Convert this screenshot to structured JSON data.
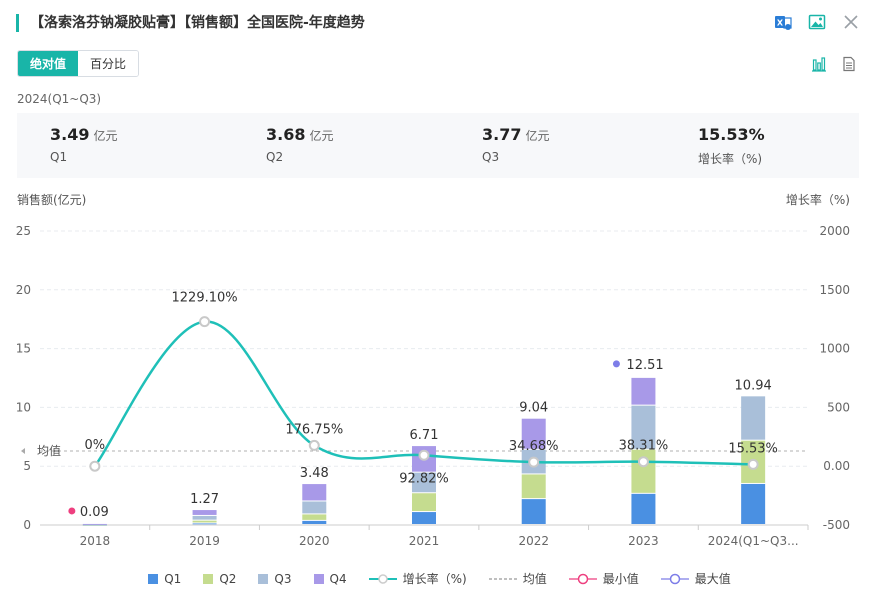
{
  "title": "【洛索洛芬钠凝胶贴膏】【销售额】全国医院-年度趋势",
  "toggle": {
    "absolute": "绝对值",
    "percent": "百分比"
  },
  "period": "2024(Q1~Q3)",
  "stats": [
    {
      "value": "3.49",
      "unit": "亿元",
      "label": "Q1"
    },
    {
      "value": "3.68",
      "unit": "亿元",
      "label": "Q2"
    },
    {
      "value": "3.77",
      "unit": "亿元",
      "label": "Q3"
    },
    {
      "value": "15.53%",
      "unit": "",
      "label": "增长率（%)"
    }
  ],
  "colors": {
    "q1": "#4a90e2",
    "q2": "#c5dc8f",
    "q3": "#a9bfd9",
    "q4": "#a899e8",
    "growth": "#1fc0b8",
    "min": "#ee3f7f",
    "max": "#7d7de8",
    "accent": "#19b5a8"
  },
  "icons": [
    "excel-export-icon",
    "image-export-icon",
    "close-icon",
    "bar-chart-icon",
    "table-view-icon"
  ],
  "chart_data": {
    "type": "bar",
    "stacked": true,
    "ylabel": "销售额(亿元)",
    "y2label": "增长率（%)",
    "ylim": [
      0,
      25
    ],
    "y2lim": [
      -500,
      2000
    ],
    "yticks": [
      "0",
      "5",
      "10",
      "15",
      "20",
      "25"
    ],
    "y2ticks": [
      "-500",
      "0.00",
      "500",
      "1000",
      "1500",
      "2000"
    ],
    "categories": [
      "2018",
      "2019",
      "2020",
      "2021",
      "2022",
      "2023",
      "2024(Q1~Q3..."
    ],
    "series": [
      {
        "name": "Q1",
        "values": [
          0.01,
          0.13,
          0.35,
          1.1,
          2.2,
          2.65,
          3.49
        ]
      },
      {
        "name": "Q2",
        "values": [
          0.02,
          0.24,
          0.55,
          1.6,
          2.1,
          3.75,
          3.68
        ]
      },
      {
        "name": "Q3",
        "values": [
          0.03,
          0.4,
          1.1,
          1.75,
          2.1,
          3.75,
          3.77
        ]
      },
      {
        "name": "Q4",
        "values": [
          0.03,
          0.5,
          1.48,
          2.26,
          2.64,
          2.36,
          0
        ]
      }
    ],
    "totals": [
      "0.09",
      "1.27",
      "3.48",
      "6.71",
      "9.04",
      "12.51",
      "10.94"
    ],
    "growth": {
      "name": "增长率（%)",
      "values": [
        0,
        1229.1,
        176.75,
        92.82,
        34.68,
        38.31,
        15.53
      ],
      "labels": [
        "0%",
        "1229.10%",
        "176.75%",
        "92.82%",
        "34.68%",
        "38.31%",
        "15.53%"
      ]
    },
    "average": {
      "name": "均值",
      "label": "均值",
      "value": 6.29
    },
    "min": {
      "name": "最小值",
      "category": "2018",
      "value": 0.09
    },
    "max": {
      "name": "最大值",
      "category": "2023",
      "value": 12.51
    },
    "legend": [
      "Q1",
      "Q2",
      "Q3",
      "Q4",
      "增长率（%)",
      "均值",
      "最小值",
      "最大值"
    ]
  }
}
